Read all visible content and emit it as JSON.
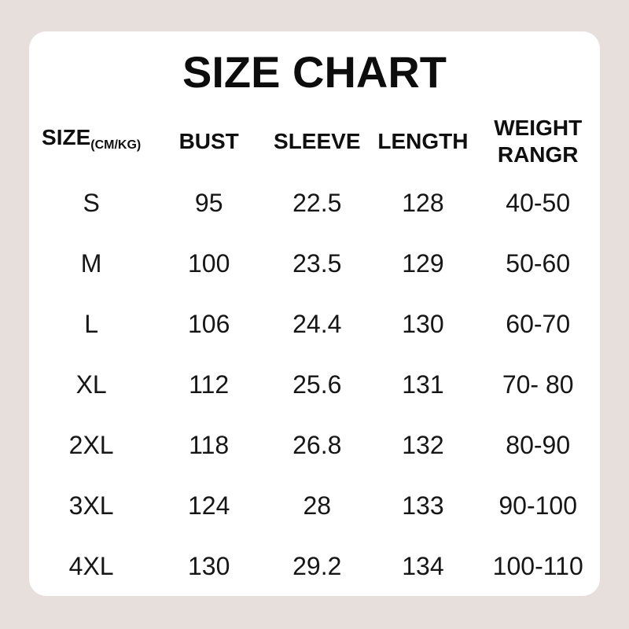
{
  "page": {
    "background_color": "#e7dfdc",
    "card_color": "#ffffff",
    "text_color": "#141414"
  },
  "title": "SIZE CHART",
  "table": {
    "header": {
      "size_label": "SIZE",
      "size_unit": "(CM/KG)",
      "bust": "BUST",
      "sleeve": "SLEEVE",
      "length": "LENGTH",
      "weight_line1": "WEIGHT",
      "weight_line2": "RANGR"
    },
    "rows": [
      [
        "S",
        "95",
        "22.5",
        "128",
        "40-50"
      ],
      [
        "M",
        "100",
        "23.5",
        "129",
        "50-60"
      ],
      [
        "L",
        "106",
        "24.4",
        "130",
        "60-70"
      ],
      [
        "XL",
        "112",
        "25.6",
        "131",
        "70- 80"
      ],
      [
        "2XL",
        "118",
        "26.8",
        "132",
        "80-90"
      ],
      [
        "3XL",
        "124",
        "28",
        "133",
        "90-100"
      ],
      [
        "4XL",
        "130",
        "29.2",
        "134",
        "100-110"
      ]
    ]
  },
  "chart_data": {
    "type": "table",
    "title": "SIZE CHART",
    "columns": [
      "SIZE(CM/KG)",
      "BUST",
      "SLEEVE",
      "LENGTH",
      "WEIGHT RANGR"
    ],
    "rows": [
      {
        "size": "S",
        "bust": 95,
        "sleeve": 22.5,
        "length": 128,
        "weight_range": "40-50"
      },
      {
        "size": "M",
        "bust": 100,
        "sleeve": 23.5,
        "length": 129,
        "weight_range": "50-60"
      },
      {
        "size": "L",
        "bust": 106,
        "sleeve": 24.4,
        "length": 130,
        "weight_range": "60-70"
      },
      {
        "size": "XL",
        "bust": 112,
        "sleeve": 25.6,
        "length": 131,
        "weight_range": "70-80"
      },
      {
        "size": "2XL",
        "bust": 118,
        "sleeve": 26.8,
        "length": 132,
        "weight_range": "80-90"
      },
      {
        "size": "3XL",
        "bust": 124,
        "sleeve": 28,
        "length": 133,
        "weight_range": "90-100"
      },
      {
        "size": "4XL",
        "bust": 130,
        "sleeve": 29.2,
        "length": 134,
        "weight_range": "100-110"
      }
    ],
    "units": "CM/KG",
    "layout": "white rounded card centered on pink-beige background, no gridlines"
  }
}
